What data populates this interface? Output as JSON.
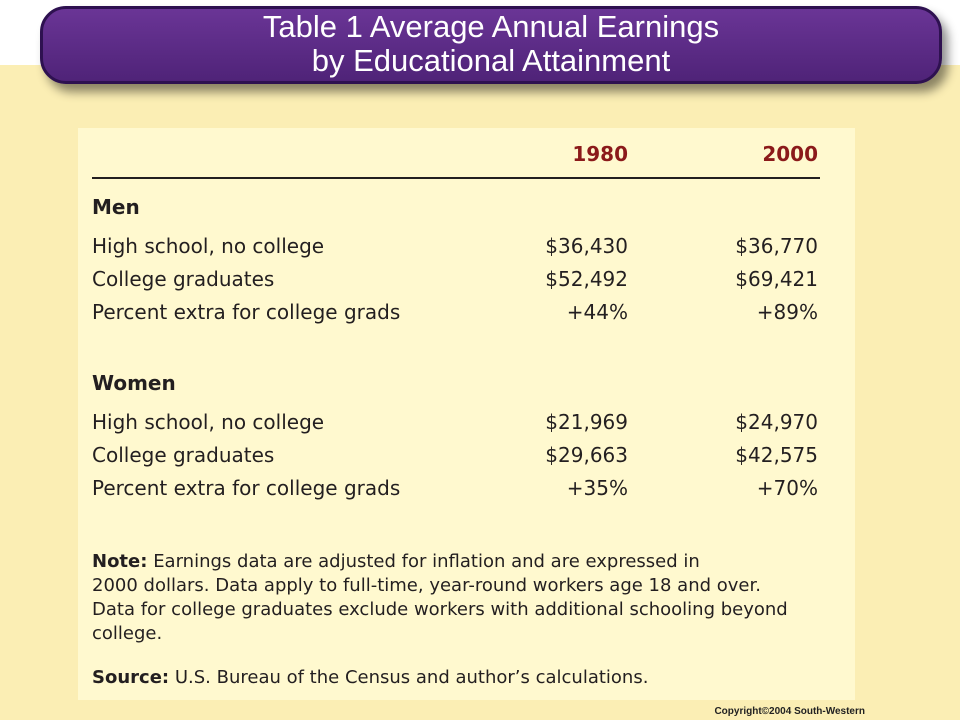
{
  "header": {
    "title_lines": [
      "Table 1 Average Annual Earnings",
      "by Educational Attainment"
    ]
  },
  "table": {
    "columns": [
      "1980",
      "2000"
    ],
    "sections": [
      {
        "label": "Men",
        "rows": [
          [
            "High school, no college",
            "$36,430",
            "$36,770"
          ],
          [
            "College graduates",
            "$52,492",
            "$69,421"
          ],
          [
            "Percent extra for college grads",
            "+44%",
            "+89%"
          ]
        ]
      },
      {
        "label": "Women",
        "rows": [
          [
            "High school, no college",
            "$21,969",
            "$24,970"
          ],
          [
            "College graduates",
            "$29,663",
            "$42,575"
          ],
          [
            "Percent extra for college grads",
            "+35%",
            "+70%"
          ]
        ]
      }
    ]
  },
  "note": {
    "label": "Note:",
    "lines": [
      "Earnings data are adjusted for inflation and are expressed in",
      "2000 dollars. Data apply to full-time, year-round workers age 18 and over.",
      "Data for college graduates exclude workers with additional schooling beyond",
      "college."
    ]
  },
  "source": {
    "label": "Source:",
    "text": "U.S. Bureau of the Census and author’s calculations."
  },
  "copyright": "Copyright©2004  South-Western"
}
